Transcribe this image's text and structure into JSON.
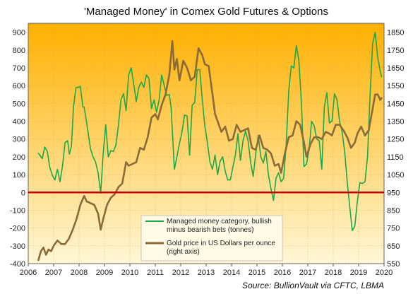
{
  "chart_data": {
    "type": "line",
    "title": "'Managed Money' in Comex Gold Futures & Options",
    "source": "Source: BullionVault via CFTC, LBMA",
    "xlabel": "",
    "ylabel": "",
    "xlim": [
      2006,
      2020
    ],
    "ylim": [
      -400,
      950
    ],
    "y2lim": [
      550,
      1900
    ],
    "x_ticks": [
      "2006",
      "2007",
      "2008",
      "2009",
      "2010",
      "2011",
      "2012",
      "2013",
      "2014",
      "2015",
      "2016",
      "2017",
      "2018",
      "2019",
      "2020"
    ],
    "y_ticks": [
      "-400",
      "-300",
      "-200",
      "-100",
      "0",
      "100",
      "200",
      "300",
      "400",
      "500",
      "600",
      "700",
      "800",
      "900"
    ],
    "y2_ticks": [
      "550",
      "650",
      "750",
      "850",
      "950",
      "1050",
      "1150",
      "1250",
      "1350",
      "1450",
      "1550",
      "1650",
      "1750",
      "1850"
    ],
    "zero_line": 0,
    "grid": true,
    "legend_position": "bottom-center",
    "colors": {
      "managed_money": "#1aa84a",
      "gold_price": "#8b6a3a",
      "zero_line": "#cc0000",
      "bg_top": "#ffb000",
      "bg_bottom": "#fff7d6"
    },
    "series": [
      {
        "name": "Managed money category, bullish minus bearish bets (tonnes)",
        "axis": "left",
        "x": [
          2006.4,
          2006.55,
          2006.65,
          2006.75,
          2006.85,
          2006.95,
          2007.05,
          2007.15,
          2007.25,
          2007.35,
          2007.45,
          2007.55,
          2007.62,
          2007.7,
          2007.78,
          2007.88,
          2007.95,
          2008.05,
          2008.15,
          2008.2,
          2008.3,
          2008.45,
          2008.55,
          2008.65,
          2008.75,
          2008.85,
          2008.95,
          2009.05,
          2009.15,
          2009.25,
          2009.35,
          2009.45,
          2009.55,
          2009.65,
          2009.75,
          2009.85,
          2009.95,
          2010.05,
          2010.15,
          2010.25,
          2010.35,
          2010.45,
          2010.55,
          2010.65,
          2010.75,
          2010.85,
          2010.95,
          2011.05,
          2011.15,
          2011.25,
          2011.35,
          2011.45,
          2011.55,
          2011.62,
          2011.68,
          2011.75,
          2011.85,
          2011.95,
          2012.05,
          2012.15,
          2012.25,
          2012.35,
          2012.45,
          2012.55,
          2012.65,
          2012.75,
          2012.85,
          2012.95,
          2013.05,
          2013.15,
          2013.25,
          2013.35,
          2013.45,
          2013.55,
          2013.65,
          2013.75,
          2013.85,
          2013.95,
          2014.05,
          2014.15,
          2014.25,
          2014.35,
          2014.45,
          2014.55,
          2014.65,
          2014.75,
          2014.85,
          2014.95,
          2015.05,
          2015.15,
          2015.25,
          2015.35,
          2015.45,
          2015.55,
          2015.65,
          2015.75,
          2015.85,
          2015.95,
          2016.05,
          2016.15,
          2016.25,
          2016.35,
          2016.45,
          2016.55,
          2016.65,
          2016.75,
          2016.85,
          2016.95,
          2017.05,
          2017.15,
          2017.25,
          2017.35,
          2017.45,
          2017.55,
          2017.65,
          2017.75,
          2017.85,
          2017.95,
          2018.05,
          2018.15,
          2018.25,
          2018.35,
          2018.45,
          2018.55,
          2018.65,
          2018.75,
          2018.85,
          2018.95,
          2019.05,
          2019.15,
          2019.25,
          2019.35,
          2019.45,
          2019.55,
          2019.65,
          2019.75,
          2019.85,
          2019.9
        ],
        "values": [
          220,
          190,
          255,
          230,
          140,
          95,
          70,
          130,
          60,
          150,
          280,
          290,
          215,
          260,
          480,
          590,
          590,
          595,
          480,
          480,
          390,
          245,
          200,
          170,
          110,
          -5,
          220,
          380,
          200,
          235,
          230,
          265,
          380,
          520,
          555,
          460,
          660,
          700,
          610,
          510,
          590,
          620,
          590,
          660,
          640,
          470,
          520,
          450,
          520,
          660,
          600,
          545,
          550,
          480,
          320,
          130,
          200,
          275,
          340,
          435,
          430,
          210,
          490,
          505,
          690,
          690,
          520,
          370,
          280,
          170,
          130,
          210,
          100,
          175,
          200,
          120,
          70,
          70,
          140,
          210,
          330,
          180,
          290,
          345,
          290,
          170,
          90,
          215,
          320,
          200,
          165,
          230,
          100,
          20,
          -45,
          80,
          110,
          60,
          80,
          270,
          570,
          710,
          700,
          825,
          740,
          500,
          145,
          160,
          240,
          400,
          375,
          300,
          290,
          130,
          480,
          560,
          390,
          400,
          555,
          520,
          400,
          340,
          230,
          60,
          -80,
          -215,
          -190,
          -50,
          55,
          50,
          60,
          200,
          550,
          835,
          900,
          760,
          680,
          650
        ]
      },
      {
        "name": "Gold price in US Dollars per ounce (right axis)",
        "axis": "right",
        "x": [
          2006.4,
          2006.5,
          2006.6,
          2006.7,
          2006.8,
          2006.9,
          2007.0,
          2007.15,
          2007.3,
          2007.45,
          2007.6,
          2007.75,
          2007.9,
          2008.05,
          2008.2,
          2008.3,
          2008.45,
          2008.6,
          2008.75,
          2008.85,
          2008.95,
          2009.1,
          2009.25,
          2009.4,
          2009.55,
          2009.7,
          2009.85,
          2009.95,
          2010.1,
          2010.25,
          2010.4,
          2010.55,
          2010.7,
          2010.85,
          2011.0,
          2011.1,
          2011.25,
          2011.4,
          2011.55,
          2011.67,
          2011.75,
          2011.85,
          2011.95,
          2012.1,
          2012.25,
          2012.4,
          2012.55,
          2012.7,
          2012.85,
          2012.95,
          2013.1,
          2013.25,
          2013.35,
          2013.45,
          2013.6,
          2013.75,
          2013.9,
          2014.05,
          2014.2,
          2014.35,
          2014.5,
          2014.65,
          2014.8,
          2014.95,
          2015.1,
          2015.25,
          2015.4,
          2015.55,
          2015.7,
          2015.85,
          2015.95,
          2016.1,
          2016.25,
          2016.4,
          2016.55,
          2016.7,
          2016.85,
          2016.95,
          2017.1,
          2017.25,
          2017.4,
          2017.55,
          2017.7,
          2017.85,
          2017.95,
          2018.1,
          2018.25,
          2018.4,
          2018.55,
          2018.7,
          2018.85,
          2018.95,
          2019.1,
          2019.25,
          2019.4,
          2019.55,
          2019.65,
          2019.75,
          2019.85,
          2019.9
        ],
        "values": [
          570,
          620,
          640,
          600,
          630,
          620,
          650,
          680,
          660,
          660,
          690,
          740,
          800,
          880,
          930,
          900,
          890,
          880,
          830,
          740,
          800,
          880,
          920,
          940,
          980,
          1000,
          1120,
          1100,
          1110,
          1120,
          1200,
          1190,
          1260,
          1370,
          1390,
          1360,
          1440,
          1500,
          1610,
          1800,
          1640,
          1700,
          1580,
          1690,
          1650,
          1580,
          1600,
          1760,
          1720,
          1670,
          1660,
          1500,
          1390,
          1350,
          1290,
          1320,
          1240,
          1250,
          1330,
          1290,
          1300,
          1310,
          1200,
          1190,
          1270,
          1200,
          1190,
          1170,
          1100,
          1110,
          1060,
          1170,
          1260,
          1270,
          1350,
          1330,
          1230,
          1150,
          1220,
          1260,
          1260,
          1250,
          1290,
          1280,
          1270,
          1330,
          1330,
          1300,
          1260,
          1200,
          1230,
          1280,
          1320,
          1270,
          1300,
          1420,
          1500,
          1500,
          1470,
          1480
        ]
      }
    ]
  }
}
